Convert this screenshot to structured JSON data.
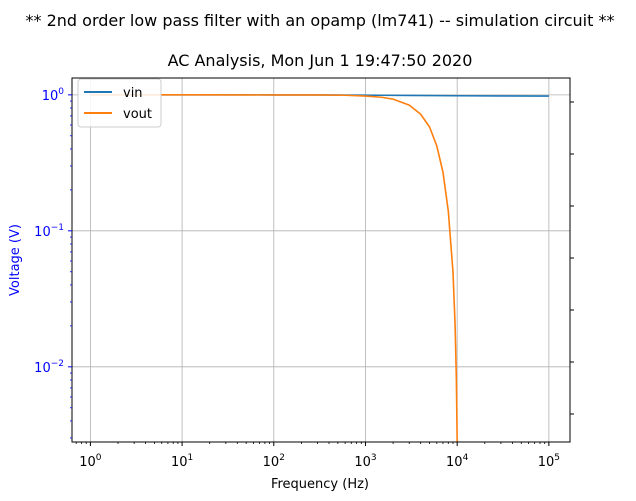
{
  "chart_data": {
    "type": "line",
    "suptitle": "** 2nd order low pass filter with an opamp (lm741) -- simulation circuit **",
    "title": "AC Analysis, Mon Jun  1 19:47:50  2020",
    "xlabel": "Frequency (Hz)",
    "ylabel": "Voltage (V)",
    "xscale": "log",
    "yscale": "log",
    "xlim": [
      0.63,
      170000
    ],
    "ylim": [
      0.0028,
      1.33
    ],
    "xticks": [
      1,
      10,
      100,
      1000,
      10000,
      100000
    ],
    "xtick_labels": [
      {
        "base": "10",
        "exp": "0"
      },
      {
        "base": "10",
        "exp": "1"
      },
      {
        "base": "10",
        "exp": "2"
      },
      {
        "base": "10",
        "exp": "3"
      },
      {
        "base": "10",
        "exp": "4"
      },
      {
        "base": "10",
        "exp": "5"
      }
    ],
    "yticks": [
      0.01,
      0.1,
      1
    ],
    "ytick_labels": [
      {
        "base": "10",
        "exp": "−2"
      },
      {
        "base": "10",
        "exp": "−1"
      },
      {
        "base": "10",
        "exp": "0"
      }
    ],
    "grid": true,
    "legend": "top-left",
    "ylabel_color": "#0000ff",
    "series": [
      {
        "name": "vin",
        "color": "#1f77b4",
        "x": [
          1,
          3,
          10,
          30,
          100,
          300,
          1000,
          3000,
          10000,
          30000,
          100000
        ],
        "y": [
          1.0,
          1.0,
          1.0,
          1.0,
          0.999,
          0.998,
          0.995,
          0.99,
          0.985,
          0.982,
          0.98
        ]
      },
      {
        "name": "vout",
        "color": "#ff7f0e",
        "x": [
          1,
          10,
          100,
          300,
          600,
          1000,
          1500,
          2000,
          3000,
          4000,
          5000,
          6000,
          7000,
          8000,
          9000,
          9500,
          9800,
          10000
        ],
        "y": [
          1.0,
          1.0,
          0.999,
          0.998,
          0.993,
          0.98,
          0.96,
          0.93,
          0.84,
          0.72,
          0.58,
          0.42,
          0.27,
          0.14,
          0.05,
          0.02,
          0.008,
          0.0028
        ]
      }
    ]
  }
}
